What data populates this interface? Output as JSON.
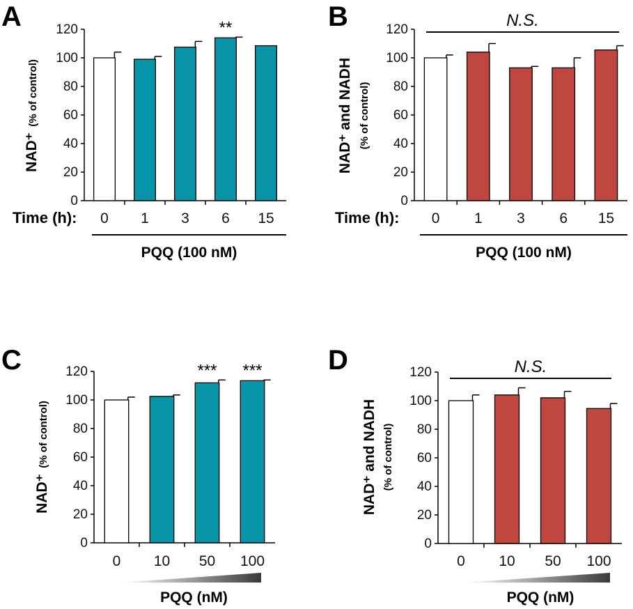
{
  "colors": {
    "teal": "#0995a8",
    "red": "#c0473f",
    "control": "#ffffff"
  },
  "chart_data": [
    {
      "panel": "A",
      "type": "bar",
      "title": "",
      "ylabel": "NAD⁺",
      "ylabel_sub": "(% of control)",
      "xlabel_prefix": "Time (h):",
      "xlabel": "PQQ (100 nM)",
      "categories": [
        "0",
        "1",
        "3",
        "6",
        "15"
      ],
      "values": [
        100,
        99,
        107.5,
        114,
        108.5
      ],
      "errors": [
        4,
        2,
        4,
        0.5,
        0
      ],
      "bar_colors": [
        "control",
        "teal",
        "teal",
        "teal",
        "teal"
      ],
      "annotations": [
        "",
        "",
        "",
        "**",
        ""
      ],
      "ns_label": "",
      "gradient": false,
      "yticks": [
        "0",
        "20",
        "40",
        "60",
        "80",
        "100",
        "120"
      ],
      "ylim": [
        0,
        120
      ]
    },
    {
      "panel": "B",
      "type": "bar",
      "title": "",
      "ylabel": "NAD⁺ and NADH",
      "ylabel_sub": "(% of control)",
      "xlabel_prefix": "Time (h):",
      "xlabel": "PQQ (100 nM)",
      "categories": [
        "0",
        "1",
        "3",
        "6",
        "15"
      ],
      "values": [
        100,
        104,
        93,
        93,
        105.5
      ],
      "errors": [
        2,
        6,
        1,
        7,
        3
      ],
      "bar_colors": [
        "control",
        "red",
        "red",
        "red",
        "red"
      ],
      "annotations": [
        "",
        "",
        "",
        "",
        ""
      ],
      "ns_label": "N.S.",
      "gradient": false,
      "yticks": [
        "0",
        "20",
        "40",
        "60",
        "80",
        "100",
        "120"
      ],
      "ylim": [
        0,
        120
      ]
    },
    {
      "panel": "C",
      "type": "bar",
      "title": "",
      "ylabel": "NAD⁺",
      "ylabel_sub": "(% of control)",
      "xlabel_prefix": "",
      "xlabel": "PQQ (nM)",
      "categories": [
        "0",
        "10",
        "50",
        "100"
      ],
      "values": [
        100,
        102.5,
        112,
        113.5
      ],
      "errors": [
        2,
        1,
        2,
        0.5
      ],
      "bar_colors": [
        "control",
        "teal",
        "teal",
        "teal"
      ],
      "annotations": [
        "",
        "",
        "***",
        "***"
      ],
      "ns_label": "",
      "gradient": true,
      "yticks": [
        "0",
        "20",
        "40",
        "60",
        "80",
        "100",
        "120"
      ],
      "ylim": [
        0,
        120
      ]
    },
    {
      "panel": "D",
      "type": "bar",
      "title": "",
      "ylabel": "NAD⁺ and NADH",
      "ylabel_sub": "(% of control)",
      "xlabel_prefix": "",
      "xlabel": "PQQ (nM)",
      "categories": [
        "0",
        "10",
        "50",
        "100"
      ],
      "values": [
        100,
        104,
        102,
        94.5
      ],
      "errors": [
        4,
        5,
        4.5,
        3.5
      ],
      "bar_colors": [
        "control",
        "red",
        "red",
        "red"
      ],
      "annotations": [
        "",
        "",
        "",
        ""
      ],
      "ns_label": "N.S.",
      "gradient": true,
      "yticks": [
        "0",
        "20",
        "40",
        "60",
        "80",
        "100",
        "120"
      ],
      "ylim": [
        0,
        120
      ]
    }
  ]
}
